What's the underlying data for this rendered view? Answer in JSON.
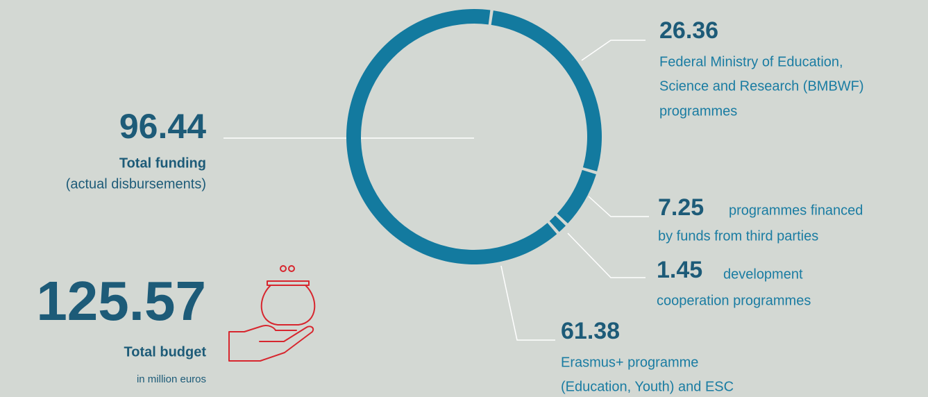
{
  "chart_data": {
    "type": "donut",
    "values": [
      26.36,
      7.25,
      1.45,
      61.38
    ],
    "labels": [
      [
        "Federal Ministry of Education,",
        "Science and Research (BMBWF)",
        "programmes"
      ],
      [
        "programmes financed",
        "by funds from third parties"
      ],
      [
        "development",
        "cooperation programmes"
      ],
      [
        "Erasmus+ programme",
        "(Education, Youth) and ESC"
      ]
    ],
    "color": "#137a9f",
    "total_funding": 96.44,
    "total_funding_label": "Total funding",
    "total_funding_note": "(actual disbursements)",
    "total_budget": 125.57,
    "total_budget_label": "Total budget",
    "unit_note": "in million euros"
  }
}
